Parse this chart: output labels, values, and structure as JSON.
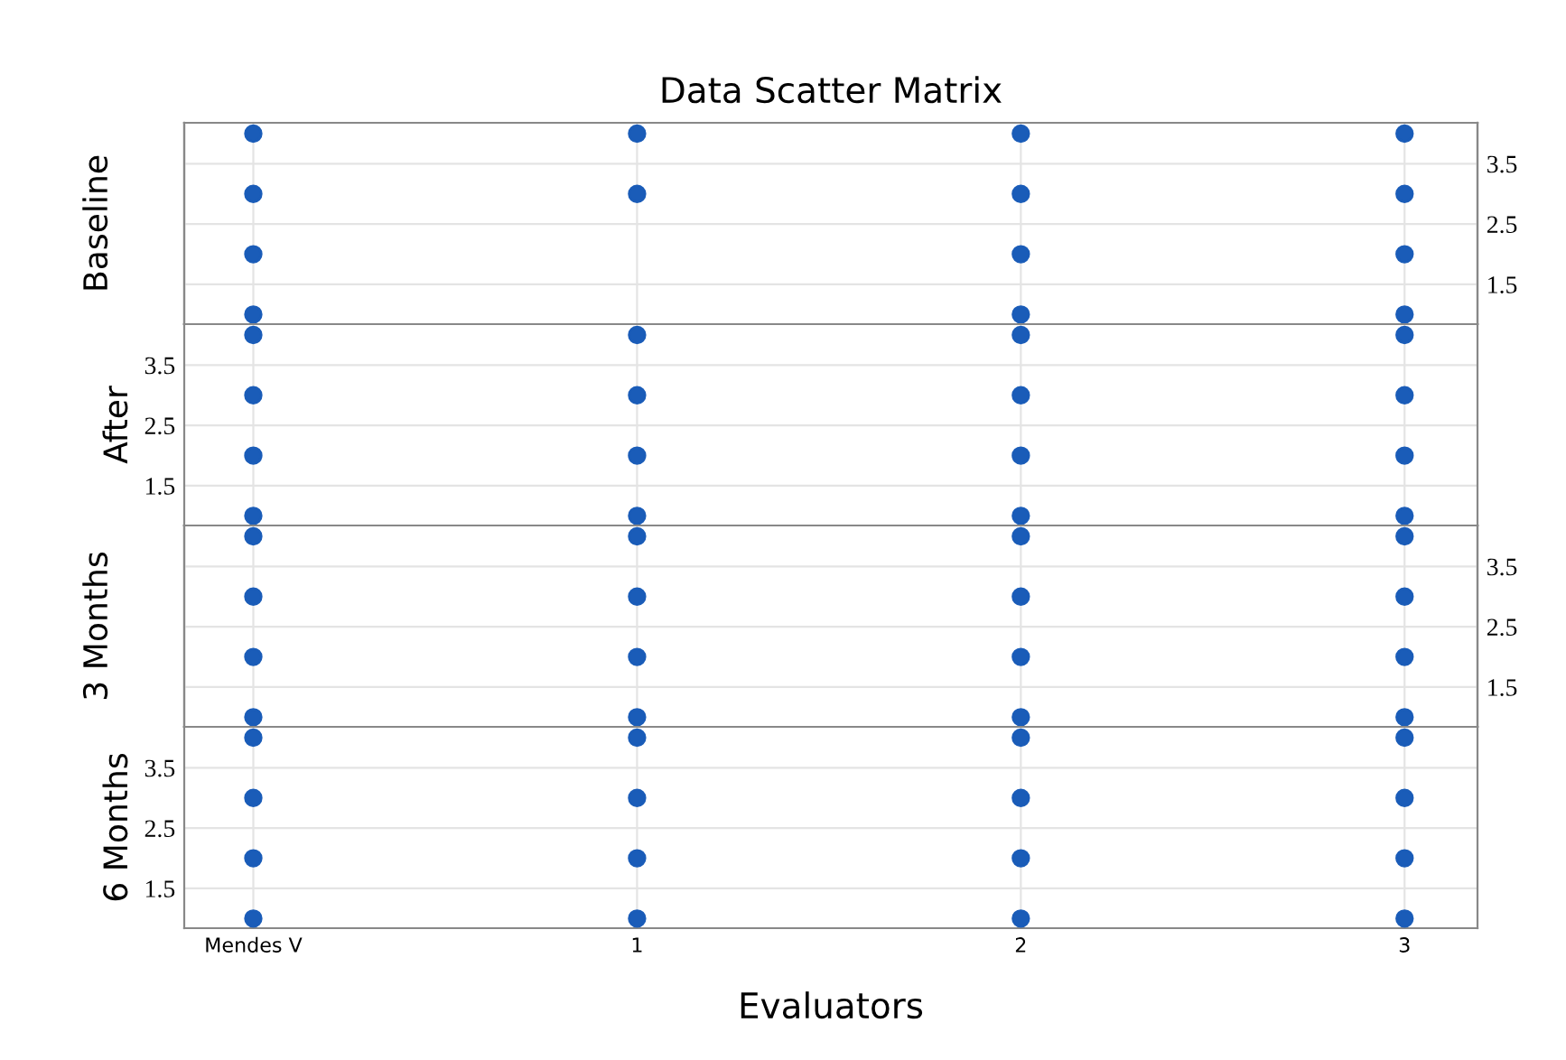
{
  "chart_data": [
    {
      "type": "scatter",
      "title": "Data Scatter Matrix",
      "ylabel": "Baseline",
      "categories": [
        null,
        null,
        null,
        null
      ],
      "marker": "circle",
      "grid": true,
      "tick_labels": "y",
      "y2lim": [
        0.84,
        4.18
      ],
      "y2ticks": [
        1.5,
        2.5,
        3.5
      ],
      "series": [
        {
          "color": "#1a5cb8",
          "axis": "y2",
          "values": [
            4,
            4,
            4,
            4
          ]
        },
        {
          "color": "#1a5cb8",
          "axis": "y2",
          "values": [
            3,
            3,
            3,
            3
          ]
        },
        {
          "color": "#1a5cb8",
          "axis": "y2",
          "values": [
            2,
            null,
            2,
            2
          ]
        },
        {
          "color": "#1a5cb8",
          "axis": "y2",
          "values": [
            1,
            null,
            1,
            1
          ]
        }
      ]
    },
    {
      "type": "scatter",
      "ylabel": "After",
      "categories": [
        null,
        null,
        null,
        null
      ],
      "marker": "circle",
      "grid": true,
      "tick_labels": "y",
      "ylim": [
        0.84,
        4.18
      ],
      "yticks": [
        1.5,
        2.5,
        3.5
      ],
      "series": [
        {
          "color": "#1a5cb8",
          "values": [
            4,
            4,
            4,
            4
          ]
        },
        {
          "color": "#1a5cb8",
          "values": [
            3,
            3,
            3,
            3
          ]
        },
        {
          "color": "#1a5cb8",
          "values": [
            2,
            2,
            2,
            2
          ]
        },
        {
          "color": "#1a5cb8",
          "values": [
            1,
            1,
            1,
            1
          ]
        }
      ]
    },
    {
      "type": "scatter",
      "ylabel": "3 Months",
      "categories": [
        null,
        null,
        null,
        null
      ],
      "marker": "circle",
      "grid": true,
      "tick_labels": "y",
      "y2lim": [
        0.84,
        4.18
      ],
      "y2ticks": [
        1.5,
        2.5,
        3.5
      ],
      "series": [
        {
          "color": "#1a5cb8",
          "axis": "y2",
          "values": [
            4,
            4,
            4,
            4
          ]
        },
        {
          "color": "#1a5cb8",
          "axis": "y2",
          "values": [
            3,
            3,
            3,
            3
          ]
        },
        {
          "color": "#1a5cb8",
          "axis": "y2",
          "values": [
            2,
            2,
            2,
            2
          ]
        },
        {
          "color": "#1a5cb8",
          "axis": "y2",
          "values": [
            1,
            1,
            1,
            1
          ]
        }
      ]
    },
    {
      "type": "scatter",
      "ylabel": "6 Months",
      "xlabel": "Evaluators",
      "categories": [
        "Mendes V",
        "1",
        "2",
        "3"
      ],
      "marker": "circle",
      "grid": true,
      "ylim": [
        0.84,
        4.18
      ],
      "yticks": [
        1.5,
        2.5,
        3.5
      ],
      "series": [
        {
          "color": "#1a5cb8",
          "values": [
            4,
            4,
            4,
            4
          ]
        },
        {
          "color": "#1a5cb8",
          "values": [
            3,
            3,
            3,
            3
          ]
        },
        {
          "color": "#1a5cb8",
          "values": [
            2,
            2,
            2,
            2
          ]
        },
        {
          "color": "#1a5cb8",
          "values": [
            1,
            1,
            1,
            1
          ]
        }
      ]
    }
  ]
}
